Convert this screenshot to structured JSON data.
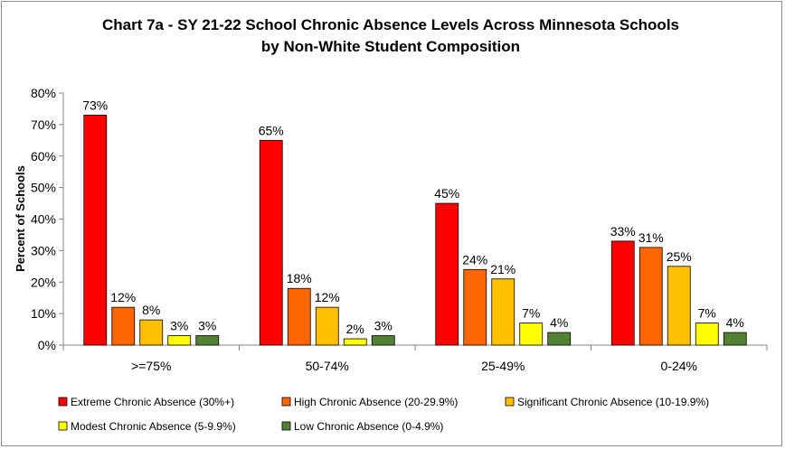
{
  "chart_data": {
    "type": "bar",
    "title": "Chart 7a - SY 21-22 School Chronic Absence Levels Across Minnesota Schools",
    "subtitle": "by Non-White Student Composition",
    "xlabel": "",
    "ylabel": "Percent of Schools",
    "ylim": [
      0,
      80
    ],
    "yticks": [
      "0%",
      "10%",
      "20%",
      "30%",
      "40%",
      "50%",
      "60%",
      "70%",
      "80%"
    ],
    "categories": [
      ">=75%",
      "50-74%",
      "25-49%",
      "0-24%"
    ],
    "grid": false,
    "legend_position": "bottom",
    "series": [
      {
        "name": "Extreme Chronic Absence (30%+)",
        "color": "#ff0000",
        "values": [
          73,
          65,
          45,
          33
        ],
        "labels": [
          "73%",
          "65%",
          "45%",
          "33%"
        ]
      },
      {
        "name": "High Chronic Absence (20-29.9%)",
        "color": "#ff6600",
        "values": [
          12,
          18,
          24,
          31
        ],
        "labels": [
          "12%",
          "18%",
          "24%",
          "31%"
        ]
      },
      {
        "name": "Significant Chronic Absence (10-19.9%)",
        "color": "#ffc000",
        "values": [
          8,
          12,
          21,
          25
        ],
        "labels": [
          "8%",
          "12%",
          "21%",
          "25%"
        ]
      },
      {
        "name": "Modest Chronic Absence (5-9.9%)",
        "color": "#ffff00",
        "values": [
          3,
          2,
          7,
          7
        ],
        "labels": [
          "3%",
          "2%",
          "7%",
          "7%"
        ]
      },
      {
        "name": "Low Chronic Absence (0-4.9%)",
        "color": "#548235",
        "values": [
          3,
          3,
          4,
          4
        ],
        "labels": [
          "3%",
          "3%",
          "4%",
          "4%"
        ]
      }
    ]
  }
}
